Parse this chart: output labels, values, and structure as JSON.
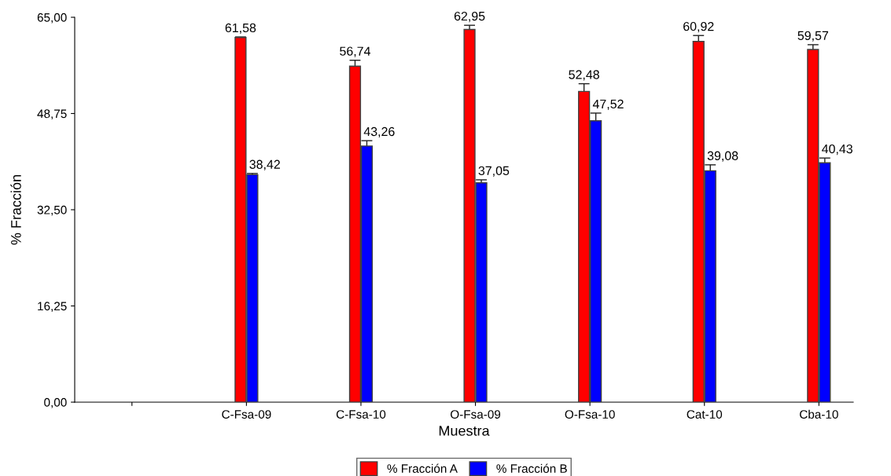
{
  "chart_data": {
    "type": "bar",
    "xlabel": "Muestra",
    "ylabel": "% Fracción",
    "categories": [
      null,
      "C-Fsa-09",
      "C-Fsa-10",
      "O-Fsa-09",
      "O-Fsa-10",
      "Cat-10",
      "Cba-10"
    ],
    "series": [
      {
        "name": "% Fracción A",
        "color": "#ff0000",
        "values": [
          null,
          61.58,
          56.74,
          62.95,
          52.48,
          60.92,
          59.57
        ],
        "errors": [
          null,
          0.1,
          1.0,
          0.7,
          1.3,
          1.0,
          0.8
        ],
        "value_labels": [
          null,
          "61,58",
          "56,74",
          "62,95",
          "52,48",
          "60,92",
          "59,57"
        ]
      },
      {
        "name": "% Fracción B",
        "color": "#0000ff",
        "values": [
          null,
          38.42,
          43.26,
          37.05,
          47.52,
          39.08,
          40.43
        ],
        "errors": [
          null,
          0.2,
          0.9,
          0.5,
          1.3,
          1.0,
          0.8
        ],
        "value_labels": [
          null,
          "38,42",
          "43,26",
          "37,05",
          "47,52",
          "39,08",
          "40,43"
        ]
      }
    ],
    "ylim": [
      0,
      65
    ],
    "yticks": [
      {
        "value": 0,
        "label": "0,00"
      },
      {
        "value": 16.25,
        "label": "16,25"
      },
      {
        "value": 32.5,
        "label": "32,50"
      },
      {
        "value": 48.75,
        "label": "48,75"
      },
      {
        "value": 65,
        "label": "65,00"
      }
    ],
    "grid": false,
    "legend": "bottom"
  }
}
